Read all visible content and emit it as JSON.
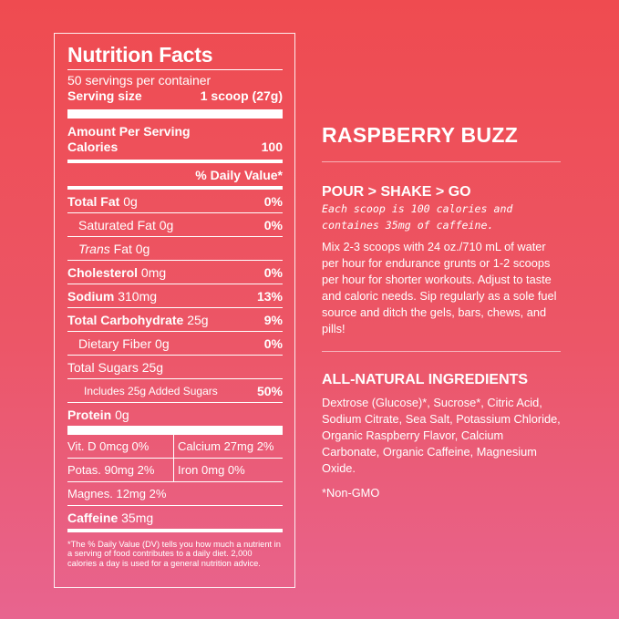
{
  "label": {
    "title": "Nutrition Facts",
    "servings": "50 servings per container",
    "serving_size_label": "Serving size",
    "serving_size_value": "1 scoop (27g)",
    "amount_per_serving": "Amount Per Serving",
    "calories_label": "Calories",
    "calories_value": "100",
    "daily_value_header": "% Daily Value*",
    "rows": [
      {
        "name": "Total Fat",
        "amount": "0g",
        "dv": "0%"
      },
      {
        "name": "Saturated Fat",
        "amount": "0g",
        "dv": "0%"
      },
      {
        "name": "Trans",
        "amount": "Fat 0g",
        "dv": ""
      },
      {
        "name": "Cholesterol",
        "amount": "0mg",
        "dv": "0%"
      },
      {
        "name": "Sodium",
        "amount": "310mg",
        "dv": "13%"
      },
      {
        "name": "Total Carbohydrate",
        "amount": "25g",
        "dv": "9%"
      },
      {
        "name": "Dietary Fiber",
        "amount": "0g",
        "dv": "0%"
      },
      {
        "name": "Total Sugars 25g",
        "amount": "",
        "dv": ""
      },
      {
        "name": "Includes 25g Added Sugars",
        "amount": "",
        "dv": "50%"
      },
      {
        "name": "Protein",
        "amount": "0g",
        "dv": ""
      }
    ],
    "vitamins": [
      {
        "left": "Vit. D 0mcg 0%",
        "right": "Calcium 27mg 2%"
      },
      {
        "left": "Potas. 90mg 2%",
        "right": "Iron 0mg 0%"
      },
      {
        "left": "Magnes. 12mg 2%",
        "right": ""
      }
    ],
    "caffeine_label": "Caffeine",
    "caffeine_value": "35mg",
    "footnote": "*The % Daily Value (DV) tells you how much a nutrient in a serving of food contributes to a daily diet. 2,000 calories a day is used for a general nutrition advice."
  },
  "product": {
    "name": "RASPBERRY BUZZ",
    "tagline": "POUR > SHAKE > GO",
    "summary_line1": "Each scoop is 100 calories and",
    "summary_line2": "containes 35mg of caffeine.",
    "directions": "Mix 2-3 scoops with 24 oz./710 mL of water per hour for endurance grunts or 1-2 scoops per hour for shorter workouts. Adjust to taste and caloric needs. Sip regularly as a sole fuel source and ditch the gels, bars, chews, and pills!",
    "ingredients_heading": "ALL-NATURAL INGREDIENTS",
    "ingredients": "Dextrose (Glucose)*, Sucrose*, Citric Acid, Sodium Citrate, Sea Salt, Potassium Chloride, Organic Raspberry Flavor, Calcium Carbonate, Organic Caffeine, Magnesium Oxide.",
    "non_gmo": "*Non-GMO"
  },
  "colors": {
    "background_top": "#ef4b50",
    "background_bottom": "#e8648f",
    "text": "#ffffff"
  }
}
